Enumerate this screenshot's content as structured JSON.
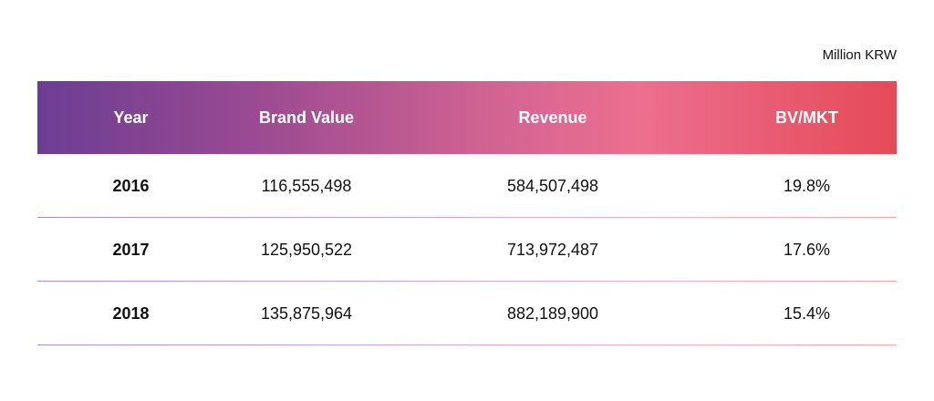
{
  "unit_label": "Million KRW",
  "table": {
    "headers": [
      "Year",
      "Brand Value",
      "Revenue",
      "BV/MKT"
    ],
    "rows": [
      [
        "2016",
        "116,555,498",
        "584,507,498",
        "19.8%"
      ],
      [
        "2017",
        "125,950,522",
        "713,972,487",
        "17.6%"
      ],
      [
        "2018",
        "135,875,964",
        "882,189,900",
        "15.4%"
      ]
    ]
  },
  "colors": {
    "header_gradient_start": "#6b3e93",
    "header_gradient_mid": "#ec6f8f",
    "header_gradient_end": "#e54a57",
    "row_divider": "#c9a3d8"
  }
}
